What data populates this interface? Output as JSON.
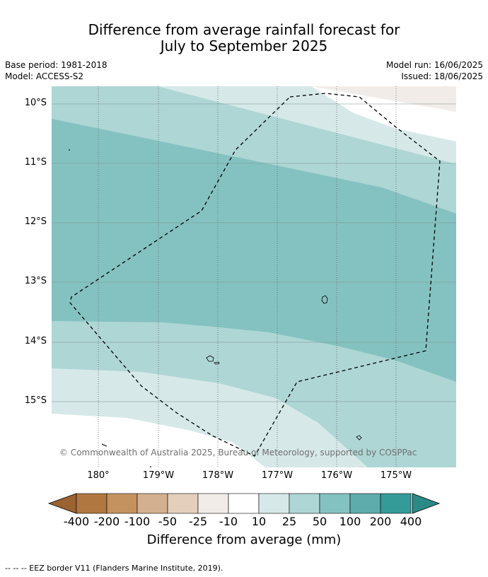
{
  "title_line1": "Difference from average rainfall forecast for",
  "title_line2": "July to September 2025",
  "base_period": "Base period: 1981-2018",
  "model": "Model: ACCESS-S2",
  "model_run": "Model run: 16/06/2025",
  "issued": "Issued: 18/06/2025",
  "lat_labels": [
    "10°S",
    "11°S",
    "12°S",
    "13°S",
    "14°S",
    "15°S"
  ],
  "lon_labels": [
    "180°",
    "179°W",
    "178°W",
    "177°W",
    "176°W",
    "175°W"
  ],
  "copyright": "© Commonwealth of Australia 2025, Bureau of Meteorology, supported by COSPPac",
  "colorbar_ticks": [
    "-400",
    "-200",
    "-100",
    "-50",
    "-25",
    "-10",
    "10",
    "25",
    "50",
    "100",
    "200",
    "400"
  ],
  "colorbar_colors": [
    "#b07840",
    "#c4925e",
    "#d3b090",
    "#e3cfbc",
    "#f1ece8",
    "#ffffff",
    "#d6e9e8",
    "#aed6d5",
    "#84c2c1",
    "#5eadac",
    "#349b98"
  ],
  "colorbar_extend_colors": {
    "low": "#9c6232",
    "high": "#2a8a86"
  },
  "colorbar_title": "Difference from average (mm)",
  "footnote": "--  --  -- EEZ border V11 (Flanders Marine Institute, 2019)."
}
